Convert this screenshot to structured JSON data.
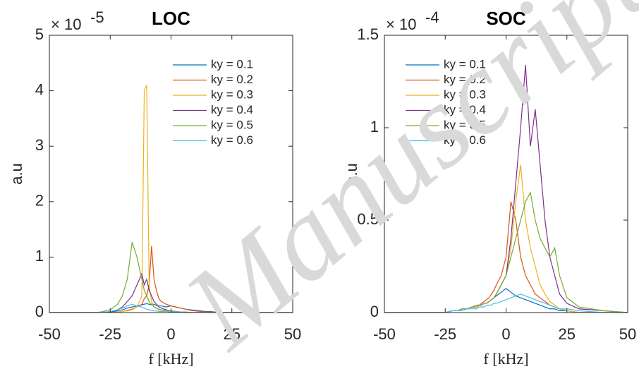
{
  "chart_data": [
    {
      "type": "line",
      "title": "LOC",
      "xlabel": "f [kHz]",
      "ylabel": "a.u",
      "y_scale": {
        "base": "× 10",
        "exponent": "-5"
      },
      "xlim": [
        -50,
        50
      ],
      "xticks": [
        -50,
        -25,
        0,
        25,
        50
      ],
      "ylim": [
        0,
        5
      ],
      "yticks": [
        0,
        1,
        2,
        3,
        4,
        5
      ],
      "legend": "upper right",
      "x": [
        -50,
        -40,
        -30,
        -25,
        -22,
        -20,
        -18,
        -16,
        -14,
        -12,
        -11,
        -10,
        -9,
        -8,
        -7,
        -6,
        -5,
        -4,
        -2,
        0,
        2,
        4,
        6,
        8,
        10,
        12,
        14,
        16,
        18,
        20,
        22,
        25,
        30,
        40,
        50
      ],
      "series": [
        {
          "name": "ky = 0.1",
          "color": "#0072bd",
          "values": [
            0,
            0,
            0,
            0.01,
            0.03,
            0.05,
            0.08,
            0.1,
            0.12,
            0.14,
            0.15,
            0.16,
            0.15,
            0.14,
            0.15,
            0.13,
            0.12,
            0.12,
            0.1,
            0.12,
            0.1,
            0.08,
            0.06,
            0.05,
            0.04,
            0.03,
            0.02,
            0.02,
            0.01,
            0.01,
            0,
            0,
            0,
            0,
            0
          ]
        },
        {
          "name": "ky = 0.2",
          "color": "#d95319",
          "values": [
            0,
            0,
            0,
            0,
            0.01,
            0.02,
            0.04,
            0.06,
            0.1,
            0.15,
            0.25,
            0.3,
            0.5,
            1.2,
            0.6,
            0.4,
            0.25,
            0.2,
            0.15,
            0.12,
            0.1,
            0.08,
            0.06,
            0.04,
            0.03,
            0.02,
            0.01,
            0.01,
            0,
            0,
            0,
            0,
            0,
            0,
            0
          ]
        },
        {
          "name": "ky = 0.3",
          "color": "#edb120",
          "values": [
            0,
            0,
            0,
            0,
            0.01,
            0.02,
            0.03,
            0.05,
            0.1,
            0.3,
            4.0,
            4.1,
            0.5,
            0.2,
            0.1,
            0.08,
            0.05,
            0.04,
            0.03,
            0.02,
            0.01,
            0.01,
            0,
            0,
            0,
            0,
            0,
            0,
            0,
            0,
            0,
            0,
            0,
            0,
            0
          ]
        },
        {
          "name": "ky = 0.4",
          "color": "#7e2f8e",
          "values": [
            0,
            0,
            0,
            0.01,
            0.05,
            0.1,
            0.2,
            0.3,
            0.5,
            0.7,
            0.5,
            0.6,
            0.4,
            0.3,
            0.2,
            0.15,
            0.1,
            0.08,
            0.05,
            0.03,
            0.02,
            0.01,
            0.01,
            0,
            0,
            0,
            0,
            0,
            0,
            0,
            0,
            0,
            0,
            0,
            0
          ]
        },
        {
          "name": "ky = 0.5",
          "color": "#77ac30",
          "values": [
            0,
            0,
            0,
            0.05,
            0.15,
            0.3,
            0.6,
            1.27,
            1.0,
            0.6,
            0.4,
            0.3,
            0.2,
            0.15,
            0.1,
            0.08,
            0.06,
            0.05,
            0.04,
            0.03,
            0.02,
            0.01,
            0.01,
            0,
            0,
            0,
            0,
            0,
            0,
            0,
            0,
            0,
            0,
            0,
            0
          ]
        },
        {
          "name": "ky = 0.6",
          "color": "#4dbeee",
          "values": [
            0,
            0,
            0,
            0.02,
            0.05,
            0.08,
            0.12,
            0.15,
            0.12,
            0.1,
            0.08,
            0.06,
            0.05,
            0.04,
            0.03,
            0.03,
            0.02,
            0.02,
            0.02,
            0.01,
            0.01,
            0.01,
            0,
            0,
            0,
            0,
            0,
            0,
            0,
            0,
            0,
            0,
            0,
            0,
            0
          ]
        }
      ]
    },
    {
      "type": "line",
      "title": "SOC",
      "xlabel": "f [kHz]",
      "ylabel": "a.u",
      "y_scale": {
        "base": "× 10",
        "exponent": "-4"
      },
      "xlim": [
        -50,
        50
      ],
      "xticks": [
        -50,
        -25,
        0,
        25,
        50
      ],
      "ylim": [
        0,
        1.5
      ],
      "yticks": [
        0,
        0.5,
        1,
        1.5
      ],
      "legend": "upper left",
      "x": [
        -50,
        -40,
        -30,
        -25,
        -22,
        -20,
        -18,
        -16,
        -14,
        -12,
        -11,
        -10,
        -9,
        -8,
        -7,
        -6,
        -5,
        -4,
        -2,
        0,
        2,
        4,
        6,
        8,
        10,
        12,
        14,
        16,
        18,
        20,
        22,
        25,
        30,
        40,
        50
      ],
      "series": [
        {
          "name": "ky = 0.1",
          "color": "#0072bd",
          "values": [
            0,
            0,
            0,
            0,
            0.01,
            0.01,
            0.02,
            0.02,
            0.03,
            0.03,
            0.04,
            0.04,
            0.05,
            0.05,
            0.06,
            0.07,
            0.08,
            0.09,
            0.11,
            0.13,
            0.11,
            0.09,
            0.08,
            0.07,
            0.06,
            0.05,
            0.04,
            0.03,
            0.02,
            0.02,
            0.01,
            0.01,
            0,
            0,
            0
          ]
        },
        {
          "name": "ky = 0.2",
          "color": "#d95319",
          "values": [
            0,
            0,
            0,
            0,
            0.01,
            0.01,
            0.02,
            0.02,
            0.03,
            0.04,
            0.04,
            0.05,
            0.06,
            0.07,
            0.08,
            0.1,
            0.12,
            0.15,
            0.2,
            0.3,
            0.6,
            0.5,
            0.3,
            0.2,
            0.15,
            0.1,
            0.08,
            0.06,
            0.04,
            0.03,
            0.02,
            0.01,
            0,
            0,
            0
          ]
        },
        {
          "name": "ky = 0.3",
          "color": "#edb120",
          "values": [
            0,
            0,
            0,
            0,
            0.01,
            0.01,
            0.02,
            0.02,
            0.03,
            0.03,
            0.04,
            0.04,
            0.05,
            0.05,
            0.06,
            0.07,
            0.08,
            0.1,
            0.15,
            0.2,
            0.35,
            0.6,
            0.8,
            0.5,
            0.35,
            0.25,
            0.15,
            0.1,
            0.06,
            0.04,
            0.02,
            0.01,
            0,
            0,
            0
          ]
        },
        {
          "name": "ky = 0.4",
          "color": "#7e2f8e",
          "values": [
            0,
            0,
            0,
            0,
            0.01,
            0.01,
            0.02,
            0.02,
            0.03,
            0.03,
            0.04,
            0.04,
            0.05,
            0.05,
            0.06,
            0.07,
            0.08,
            0.1,
            0.15,
            0.2,
            0.4,
            0.7,
            1.0,
            1.34,
            0.9,
            1.1,
            0.8,
            0.5,
            0.3,
            0.2,
            0.1,
            0.05,
            0.02,
            0.01,
            0
          ]
        },
        {
          "name": "ky = 0.5",
          "color": "#77ac30",
          "values": [
            0,
            0,
            0,
            0,
            0.01,
            0.01,
            0.02,
            0.02,
            0.03,
            0.03,
            0.04,
            0.04,
            0.05,
            0.05,
            0.06,
            0.07,
            0.08,
            0.1,
            0.15,
            0.2,
            0.3,
            0.4,
            0.5,
            0.6,
            0.65,
            0.5,
            0.4,
            0.35,
            0.3,
            0.35,
            0.2,
            0.08,
            0.03,
            0.01,
            0
          ]
        },
        {
          "name": "ky = 0.6",
          "color": "#4dbeee",
          "values": [
            0,
            0,
            0,
            0,
            0.01,
            0.01,
            0.01,
            0.02,
            0.02,
            0.02,
            0.03,
            0.03,
            0.03,
            0.04,
            0.04,
            0.04,
            0.05,
            0.05,
            0.06,
            0.07,
            0.08,
            0.09,
            0.1,
            0.09,
            0.08,
            0.07,
            0.06,
            0.05,
            0.04,
            0.03,
            0.02,
            0.02,
            0.01,
            0,
            0
          ]
        }
      ]
    }
  ],
  "watermark": "Manuscript"
}
